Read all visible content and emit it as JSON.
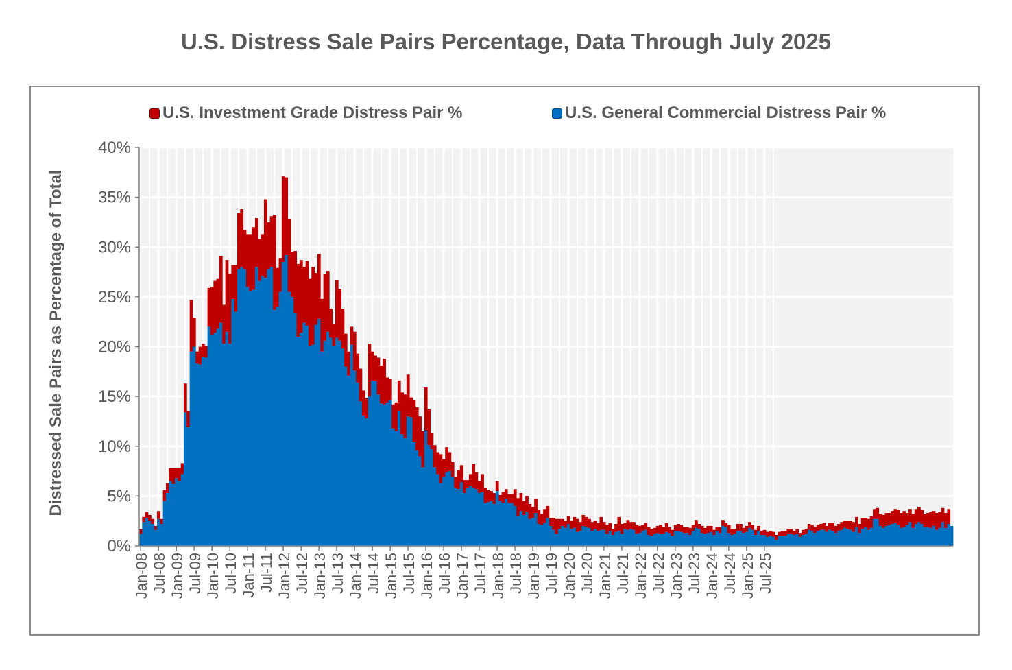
{
  "chart_data": {
    "type": "bar",
    "stacked": true,
    "title": "U.S. Distress Sale Pairs Percentage, Data Through July 2025",
    "ylabel": "Distressed Sale Pairs as Percentage of Total",
    "xlabel": "",
    "ylim": [
      0,
      40
    ],
    "y_ticks": [
      "0%",
      "5%",
      "10%",
      "15%",
      "20%",
      "25%",
      "30%",
      "35%",
      "40%"
    ],
    "x_ticks": [
      "Jan-08",
      "Jul-08",
      "Jan-09",
      "Jul-09",
      "Jan-10",
      "Jul-10",
      "Jan-11",
      "Jul-11",
      "Jan-12",
      "Jul-12",
      "Jan-13",
      "Jul-13",
      "Jan-14",
      "Jul-14",
      "Jan-15",
      "Jul-15",
      "Jan-16",
      "Jul-16",
      "Jan-17",
      "Jul-17",
      "Jan-18",
      "Jul-18",
      "Jan-19",
      "Jul-19",
      "Jan-20",
      "Jul-20",
      "Jan-21",
      "Jul-21",
      "Jan-22",
      "Jul-22",
      "Jan-23",
      "Jul-23",
      "Jan-24",
      "Jul-24",
      "Jan-25",
      "Jul-25"
    ],
    "x_start": "Jan-08",
    "x_end": "Jul-25",
    "grid": true,
    "legend_position": "top",
    "colors": {
      "investment_grade": "#c00000",
      "general_commercial": "#0070c0",
      "plot_bg": "#f2f2f2",
      "grid": "#ffffff"
    },
    "series": [
      {
        "name": "U.S. General Commercial Distress Pair %",
        "role": "general_commercial",
        "values": [
          1.2,
          2.4,
          2.8,
          2.5,
          2.2,
          1.6,
          2.7,
          2.2,
          4.5,
          5.3,
          6.5,
          6.2,
          6.8,
          6.5,
          7.2,
          13.4,
          11.9,
          19.5,
          20.0,
          18.3,
          18.2,
          19.0,
          18.9,
          22.0,
          21.2,
          21.4,
          21.8,
          22.4,
          20.3,
          21.5,
          20.3,
          24.8,
          23.5,
          27.8,
          28.0,
          27.8,
          26.0,
          25.6,
          25.7,
          28.0,
          26.6,
          27.1,
          26.9,
          27.8,
          28.0,
          23.7,
          24.0,
          25.5,
          28.5,
          29.2,
          25.5,
          25.0,
          23.4,
          21.0,
          21.4,
          22.4,
          22.1,
          20.1,
          20.2,
          22.2,
          22.8,
          19.5,
          20.6,
          21.5,
          20.9,
          20.1,
          20.9,
          20.6,
          19.8,
          18.0,
          17.1,
          20.2,
          17.6,
          16.4,
          14.5,
          13.1,
          12.8,
          15.0,
          16.6,
          16.6,
          15.2,
          14.3,
          14.2,
          14.4,
          14.6,
          11.8,
          11.5,
          13.5,
          11.2,
          10.8,
          13.0,
          12.9,
          10.4,
          9.6,
          9.0,
          7.9,
          11.6,
          10.1,
          9.7,
          7.9,
          7.2,
          6.3,
          6.9,
          7.4,
          7.5,
          6.9,
          5.8,
          5.7,
          6.4,
          5.3,
          5.8,
          6.0,
          5.8,
          5.7,
          5.3,
          5.4,
          4.3,
          4.4,
          4.5,
          4.2,
          5.5,
          4.5,
          4.3,
          4.7,
          4.3,
          4.3,
          4.0,
          3.0,
          3.5,
          3.1,
          3.4,
          2.7,
          2.8,
          3.3,
          2.2,
          2.1,
          2.3,
          2.8,
          2.0,
          1.6,
          1.2,
          1.7,
          2.0,
          1.8,
          2.2,
          1.7,
          1.8,
          1.4,
          1.5,
          2.0,
          1.9,
          1.8,
          1.5,
          1.7,
          1.5,
          1.6,
          1.6,
          1.2,
          1.5,
          1.1,
          1.4,
          1.5,
          1.2,
          1.7,
          1.6,
          1.7,
          1.6,
          1.2,
          1.3,
          1.5,
          1.6,
          1.1,
          1.0,
          1.2,
          1.3,
          1.2,
          1.2,
          1.4,
          1.3,
          1.0,
          1.5,
          1.5,
          1.4,
          1.3,
          1.3,
          1.1,
          1.5,
          1.8,
          1.7,
          1.3,
          1.2,
          1.3,
          1.4,
          1.1,
          1.5,
          1.3,
          2.0,
          1.9,
          1.3,
          1.1,
          1.2,
          1.5,
          1.5,
          1.3,
          1.4,
          1.8,
          1.6,
          1.1,
          1.5,
          1.1,
          1.1,
          0.9,
          1.0,
          0.9,
          0.6,
          1.0,
          1.0,
          1.0,
          1.2,
          1.2,
          1.1,
          1.2,
          0.9,
          1.1,
          1.2,
          1.6,
          1.5,
          1.3,
          1.5,
          1.6,
          1.6,
          1.4,
          1.6,
          1.5,
          1.3,
          1.5,
          1.6,
          1.8,
          1.7,
          1.6,
          1.4,
          1.9,
          1.3,
          1.7,
          1.9,
          1.6,
          1.8,
          2.7,
          2.7,
          2.0,
          1.8,
          2.0,
          2.1,
          2.2,
          2.3,
          2.1,
          1.8,
          1.9,
          2.1,
          2.4,
          1.8,
          2.2,
          2.4,
          2.2,
          1.9,
          1.9,
          1.8,
          2.0,
          1.6,
          1.8,
          2.4,
          1.8,
          2.2,
          2.0
        ]
      },
      {
        "name": "U.S. Investment Grade Distress Pair %",
        "role": "investment_grade",
        "values": [
          0.5,
          0.5,
          0.6,
          0.6,
          0.5,
          0.4,
          0.8,
          0.5,
          1.1,
          1.0,
          1.3,
          1.6,
          1.0,
          1.3,
          1.1,
          2.9,
          1.6,
          5.2,
          2.9,
          1.2,
          1.8,
          1.3,
          1.2,
          3.9,
          4.8,
          5.2,
          5.0,
          6.7,
          3.9,
          7.2,
          7.0,
          3.4,
          4.7,
          5.6,
          5.8,
          3.9,
          5.3,
          5.7,
          6.3,
          4.9,
          4.2,
          4.2,
          7.9,
          4.7,
          5.1,
          9.5,
          3.9,
          3.4,
          8.6,
          7.8,
          7.3,
          4.5,
          6.2,
          7.3,
          7.3,
          5.6,
          6.5,
          6.7,
          7.8,
          5.2,
          6.5,
          5.3,
          6.7,
          6.1,
          2.9,
          2.2,
          5.8,
          5.2,
          4.0,
          3.3,
          2.4,
          1.8,
          3.9,
          2.9,
          3.3,
          2.5,
          2.0,
          5.3,
          2.9,
          2.5,
          3.7,
          3.8,
          4.6,
          2.5,
          2.2,
          2.4,
          2.9,
          3.1,
          4.2,
          4.4,
          4.2,
          2.0,
          4.2,
          4.3,
          4.0,
          3.6,
          4.3,
          3.6,
          1.6,
          2.2,
          2.2,
          2.9,
          1.8,
          2.5,
          1.9,
          1.5,
          1.1,
          1.9,
          1.7,
          1.3,
          0.8,
          1.2,
          2.4,
          1.7,
          1.2,
          1.8,
          1.5,
          1.2,
          1.0,
          1.1,
          1.0,
          0.6,
          1.1,
          1.0,
          0.9,
          0.9,
          1.7,
          1.8,
          1.8,
          1.4,
          1.6,
          1.5,
          1.1,
          1.4,
          1.4,
          1.1,
          1.4,
          1.2,
          0.8,
          1.2,
          1.5,
          1.0,
          0.7,
          0.7,
          0.8,
          0.8,
          1.1,
          1.3,
          0.9,
          1.1,
          1.0,
          0.9,
          0.9,
          0.8,
          0.8,
          1.3,
          0.8,
          0.9,
          0.8,
          0.6,
          0.8,
          1.4,
          1.0,
          0.6,
          1.0,
          0.7,
          0.8,
          0.9,
          0.7,
          0.6,
          0.7,
          0.8,
          0.7,
          0.6,
          0.7,
          0.9,
          0.7,
          0.9,
          0.6,
          0.6,
          0.6,
          0.7,
          0.7,
          0.6,
          0.6,
          0.7,
          0.6,
          0.8,
          0.5,
          0.7,
          0.6,
          0.7,
          0.6,
          0.5,
          0.4,
          0.6,
          0.6,
          0.4,
          0.8,
          0.6,
          0.5,
          0.7,
          0.7,
          0.5,
          0.6,
          0.6,
          0.5,
          0.5,
          0.5,
          0.4,
          0.5,
          0.5,
          0.5,
          0.5,
          0.5,
          0.4,
          0.5,
          0.5,
          0.5,
          0.5,
          0.4,
          0.5,
          0.4,
          0.5,
          0.5,
          0.6,
          0.6,
          0.6,
          0.6,
          0.6,
          0.7,
          0.6,
          0.7,
          0.8,
          0.7,
          0.7,
          0.8,
          0.7,
          0.8,
          0.9,
          1.0,
          1.0,
          0.9,
          1.1,
          0.9,
          1.1,
          1.2,
          1.0,
          1.1,
          1.2,
          1.3,
          1.3,
          1.2,
          1.3,
          1.4,
          1.5,
          1.5,
          1.6,
          1.2,
          1.3,
          1.4,
          1.5,
          1.5,
          1.4,
          1.3,
          1.4,
          1.6,
          1.5,
          1.7,
          1.6,
          1.4,
          1.5,
          1.5
        ]
      }
    ]
  }
}
